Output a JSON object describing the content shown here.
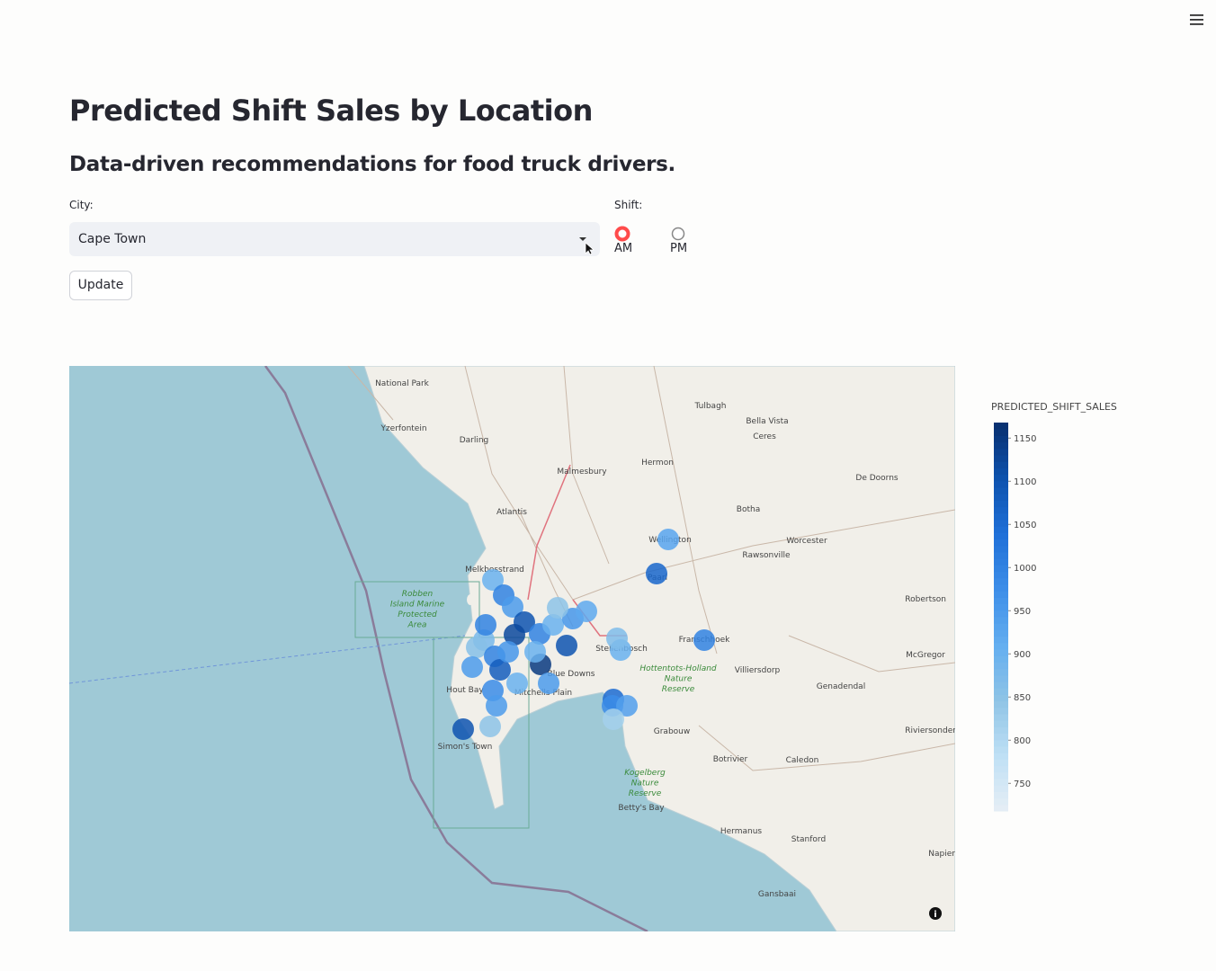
{
  "header": {
    "title": "Predicted Shift Sales by Location",
    "subtitle": "Data-driven recommendations for food truck drivers."
  },
  "controls": {
    "city_label": "City:",
    "city_value": "Cape Town",
    "shift_label": "Shift:",
    "shift_options": [
      "AM",
      "PM"
    ],
    "shift_selected": "AM",
    "button": "Update"
  },
  "map": {
    "place_labels": [
      "National Park",
      "Yzerfontein",
      "Darling",
      "Malmesbury",
      "Atlantis",
      "Tulbagh",
      "Bella Vista",
      "Ceres",
      "Hermon",
      "De Doorns",
      "Botha",
      "Wellington",
      "Worcester",
      "Rawsonville",
      "Melkbosstrand",
      "Robben Island Marine Protected Area",
      "Paarl",
      "Franschhoek",
      "Villiersdorp",
      "McGregor",
      "Hout Bay",
      "Mitchells Plain",
      "Blue Downs",
      "Stellenbosch",
      "Genadendal",
      "Grabouw",
      "Simon's Town",
      "Botrivier",
      "Caledon",
      "Riviersonderend",
      "Kogelberg Nature Reserve",
      "Hottentots-Holland Nature Reserve",
      "Betty's Bay",
      "Hermanus",
      "Stanford",
      "Gansbaai",
      "Robertson",
      "Napier"
    ],
    "colorbar": {
      "title": "PREDICTED_SHIFT_SALES",
      "range": [
        718,
        1168
      ],
      "ticks": [
        750,
        800,
        850,
        900,
        950,
        1000,
        1050,
        1100,
        1150
      ],
      "colorscale": [
        "#e6eef5",
        "#bfe0f5",
        "#8fc4e6",
        "#63aef0",
        "#3d8ee8",
        "#1f70d8",
        "#0d52ae",
        "#082f6e"
      ]
    },
    "points": [
      900,
      1000,
      950,
      1100,
      1120,
      880,
      860,
      1000,
      950,
      1080,
      1150,
      900,
      980,
      950,
      1100,
      850,
      1000,
      900,
      1100,
      960,
      920,
      850,
      950,
      900,
      870,
      1050,
      980,
      940,
      820,
      930,
      1060,
      1000,
      1000,
      900,
      960
    ]
  }
}
